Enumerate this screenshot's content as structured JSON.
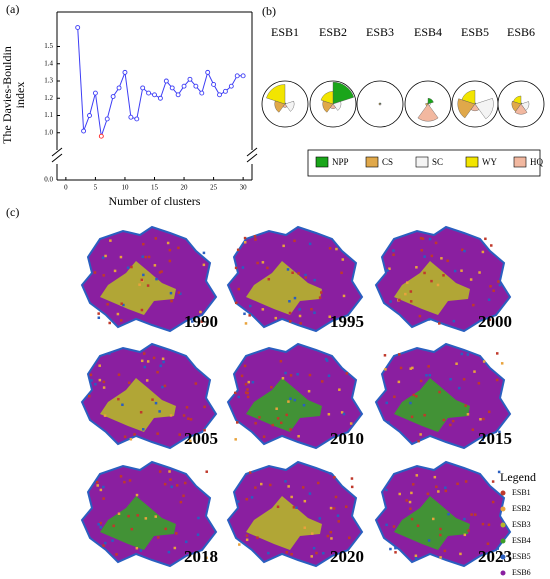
{
  "chart_data": [
    {
      "type": "line",
      "label": "(a)",
      "ylabel": [
        "The Davies-Bouldin",
        "index"
      ],
      "xlabel": "Number of clusters",
      "x": [
        2,
        3,
        4,
        5,
        6,
        7,
        8,
        9,
        10,
        11,
        12,
        13,
        14,
        15,
        16,
        17,
        18,
        19,
        20,
        21,
        22,
        23,
        24,
        25,
        26,
        27,
        28,
        29,
        30
      ],
      "values": [
        1.61,
        1.01,
        1.1,
        1.23,
        0.98,
        1.08,
        1.21,
        1.26,
        1.35,
        1.09,
        1.08,
        1.26,
        1.23,
        1.22,
        1.2,
        1.3,
        1.26,
        1.22,
        1.27,
        1.31,
        1.27,
        1.23,
        1.35,
        1.28,
        1.22,
        1.24,
        1.27,
        1.33,
        1.33
      ],
      "color": "#3d3df5",
      "marker_colors": [
        "#3d3df5",
        "#3d3df5",
        "#3d3df5",
        "#3d3df5",
        "#ff2020",
        "#3d3df5",
        "#3d3df5",
        "#3d3df5",
        "#3d3df5",
        "#3d3df5",
        "#3d3df5",
        "#3d3df5",
        "#3d3df5",
        "#3d3df5",
        "#3d3df5",
        "#3d3df5",
        "#3d3df5",
        "#3d3df5",
        "#3d3df5",
        "#3d3df5",
        "#3d3df5",
        "#3d3df5",
        "#3d3df5",
        "#3d3df5",
        "#3d3df5",
        "#3d3df5",
        "#3d3df5",
        "#3d3df5",
        "#3d3df5"
      ],
      "xlim": [
        -1.5,
        31.5
      ],
      "xticks": [
        0,
        5,
        10,
        15,
        20,
        25,
        30
      ],
      "ylim": [
        0,
        1.7
      ],
      "ybreak": [
        0.05,
        0.9
      ],
      "yticks": [
        {
          "value": 0,
          "label": "0.0"
        },
        {
          "value": 1,
          "label": "1.0"
        },
        {
          "value": 1.1,
          "label": "1.1"
        },
        {
          "value": 1.2,
          "label": "1.2"
        },
        {
          "value": 1.3,
          "label": "1.3"
        },
        {
          "value": 1.4,
          "label": "1.4"
        },
        {
          "value": 1.5,
          "label": "1.5"
        }
      ]
    },
    {
      "type": "rose",
      "label": "(b)",
      "categories": [
        "ESB1",
        "ESB2",
        "ESB3",
        "ESB4",
        "ESB5",
        "ESB6"
      ],
      "rlim": [
        0,
        1
      ],
      "series": [
        {
          "name": "NPP",
          "color": "#1aa51a",
          "values": [
            0.05,
            0.95,
            0.05,
            0.25,
            0.05,
            0.05
          ]
        },
        {
          "name": "CS",
          "color": "#e0a84a",
          "values": [
            0.45,
            0.45,
            0.05,
            0.1,
            0.75,
            0.4
          ]
        },
        {
          "name": "SC",
          "color": "#f4f4f4",
          "values": [
            0.4,
            0.35,
            0.05,
            0.1,
            0.8,
            0.35
          ]
        },
        {
          "name": "WY",
          "color": "#f2e500",
          "values": [
            0.85,
            0.55,
            0.05,
            0.05,
            0.6,
            0.35
          ]
        },
        {
          "name": "HQ",
          "color": "#f2b8a0",
          "values": [
            0.15,
            0.2,
            0.05,
            0.75,
            0.3,
            0.45
          ]
        }
      ]
    }
  ],
  "maps": {
    "label": "(c)",
    "years": [
      "1990",
      "1995",
      "2000",
      "2005",
      "2010",
      "2015",
      "2018",
      "2020",
      "2023"
    ],
    "legend": {
      "title": "Legend",
      "items": [
        {
          "name": "ESB1",
          "color": "#c0392b"
        },
        {
          "name": "ESB2",
          "color": "#e8a33c"
        },
        {
          "name": "ESB3",
          "color": "#b5b52a"
        },
        {
          "name": "ESB4",
          "color": "#3a9e2a"
        },
        {
          "name": "ESB5",
          "color": "#2a5fc0"
        },
        {
          "name": "ESB6",
          "color": "#8a1fa0"
        }
      ]
    }
  }
}
